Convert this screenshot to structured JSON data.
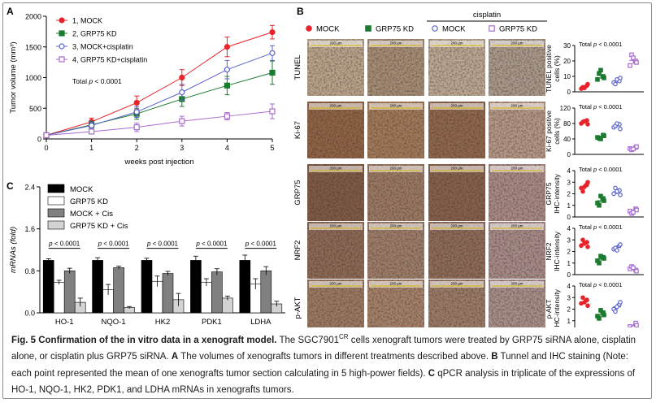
{
  "caption": {
    "lead": "Fig. 5 Confirmation of the in vitro data in a xenograft model.",
    "s1": " The SGC7901",
    "sup": "CR",
    "s2": " cells xenograft tumors were treated by GRP75 siRNA alone, cisplatin alone, or cisplatin plus GRP75 siRNA. ",
    "lA": "A",
    "s3": " The volumes of xenografts tumors in different treatments described above. ",
    "lB": "B",
    "s4": " Tunnel and IHC staining (Note: each point represented the mean of one xenografts tumor section calculating in 5 high-power fields). ",
    "lC": "C",
    "s5": " qPCR analysis in triplicate of the expressions of HO-1, NQO-1, HK2, PDK1, and LDHA mRNAs in xenografts tumors."
  },
  "colors": {
    "red": "#e8232a",
    "green": "#1a7a2e",
    "blue": "#5a63c9",
    "purple": "#a86ad0"
  },
  "panelA": {
    "letter": "A",
    "annotation": "Total p < 0.0001",
    "chart_data": {
      "type": "line",
      "x": [
        0,
        1,
        2,
        3,
        4,
        5
      ],
      "xlabel": "weeks post injection",
      "ylabel": "Tumor volume (mm³)",
      "xlim": [
        0,
        5
      ],
      "ylim": [
        0,
        2000
      ],
      "yticks": [
        0,
        500,
        1000,
        1500,
        2000
      ],
      "xticks": [
        0,
        1,
        2,
        3,
        4,
        5
      ],
      "legend": "top-left",
      "series": [
        {
          "name": "1, MOCK",
          "marker": "circle-filled",
          "color": "#e8232a",
          "values": [
            60,
            280,
            590,
            1000,
            1500,
            1740
          ],
          "err": [
            15,
            60,
            110,
            130,
            160,
            110
          ]
        },
        {
          "name": "2, GRP75 KD",
          "marker": "square-filled",
          "color": "#1a7a2e",
          "values": [
            60,
            230,
            410,
            650,
            870,
            1080
          ],
          "err": [
            15,
            60,
            90,
            120,
            150,
            190
          ]
        },
        {
          "name": "3, MOCK+cisplatin",
          "marker": "circle-open",
          "color": "#5a63c9",
          "values": [
            60,
            220,
            440,
            760,
            1130,
            1400
          ],
          "err": [
            15,
            55,
            90,
            130,
            150,
            120
          ]
        },
        {
          "name": "4, GRP75 KD+cisplatin",
          "marker": "square-open",
          "color": "#a86ad0",
          "values": [
            60,
            120,
            190,
            290,
            370,
            450
          ],
          "err": [
            10,
            40,
            70,
            80,
            60,
            120
          ]
        }
      ]
    }
  },
  "panelB": {
    "letter": "B",
    "cisplatin_label": "cisplatin",
    "legend": [
      {
        "label": "MOCK",
        "marker": "circle-filled",
        "color": "#e8232a"
      },
      {
        "label": "GRP75 KD",
        "marker": "square-filled",
        "color": "#1a7a2e"
      },
      {
        "label": "MOCK",
        "marker": "circle-open",
        "color": "#5a63c9"
      },
      {
        "label": "GRP75 KD",
        "marker": "square-open",
        "color": "#a86ad0"
      }
    ],
    "scale_bar": "200 µm",
    "rows": [
      {
        "stain": "TUNEL",
        "tint": [
          "#b9a58e",
          "#a58e78",
          "#bba995",
          "#a99a8e"
        ],
        "plot": {
          "ylabel": "TUNEL positive cells (%)",
          "annotation": "Total p < 0.0001",
          "ylim": [
            0,
            30
          ],
          "yticks": [
            0,
            10,
            20,
            30
          ],
          "groups": [
            [
              2,
              4,
              3,
              5,
              2.5
            ],
            [
              8,
              10,
              12,
              9,
              14
            ],
            [
              6,
              7,
              5,
              9,
              8
            ],
            [
              17,
              20,
              24,
              19,
              22
            ]
          ]
        }
      },
      {
        "stain": "Ki-67",
        "tint": [
          "#8f6448",
          "#a07a5c",
          "#8e6850",
          "#b49888"
        ],
        "plot": {
          "ylabel": "Ki-67 positive cells (%)",
          "annotation": "Total p < 0.0001",
          "ylim": [
            0,
            120
          ],
          "yticks": [
            0,
            40,
            80,
            120
          ],
          "groups": [
            [
              80,
              88,
              84,
              78,
              86
            ],
            [
              44,
              50,
              42,
              48,
              40
            ],
            [
              70,
              78,
              74,
              66,
              80
            ],
            [
              15,
              18,
              12,
              20,
              14
            ]
          ]
        }
      },
      {
        "stain": "GRP75",
        "tint": [
          "#7f5c48",
          "#9a7a66",
          "#86614f",
          "#a88b88"
        ],
        "plot": {
          "ylabel": "GRP75 IHC-intensity",
          "annotation": "Total p < 0.0001",
          "ylim": [
            0,
            4
          ],
          "yticks": [
            0,
            1,
            2,
            3,
            4
          ],
          "groups": [
            [
              2.5,
              2.8,
              2.2,
              3.0,
              2.6
            ],
            [
              1.2,
              1.6,
              1.0,
              1.4,
              1.8
            ],
            [
              2.0,
              2.3,
              2.5,
              1.9,
              2.2
            ],
            [
              0.5,
              0.7,
              0.3,
              0.6,
              0.4
            ]
          ]
        }
      },
      {
        "stain": "NRF2",
        "tint": [
          "#8c6a58",
          "#9c7e6c",
          "#8d6c5c",
          "#a68c8a"
        ],
        "plot": {
          "ylabel": "NRF2 IHC-intensity",
          "annotation": "Total p < 0.0001",
          "ylim": [
            0,
            4
          ],
          "yticks": [
            0,
            1,
            2,
            3,
            4
          ],
          "groups": [
            [
              2.5,
              2.8,
              3.0,
              2.4,
              2.7
            ],
            [
              1.2,
              1.5,
              1.0,
              1.4,
              1.6
            ],
            [
              2.2,
              2.5,
              2.3,
              2.6,
              2.1
            ],
            [
              0.5,
              0.4,
              0.7,
              0.3,
              0.6
            ]
          ]
        }
      },
      {
        "stain": "p-AKT",
        "tint": [
          "#9b7a64",
          "#a4826c",
          "#9a7c6a",
          "#a78f8c"
        ],
        "plot": {
          "ylabel": "p-AKT IHC-intensity",
          "annotation": "Total p < 0.0001",
          "ylim": [
            0,
            4
          ],
          "yticks": [
            0,
            1,
            2,
            3,
            4
          ],
          "groups": [
            [
              2.5,
              2.8,
              3.0,
              2.3,
              2.6
            ],
            [
              1.4,
              1.7,
              1.2,
              1.5,
              1.9
            ],
            [
              2.0,
              2.4,
              1.8,
              2.6,
              2.2
            ],
            [
              0.5,
              0.8,
              0.3,
              0.6,
              0.4
            ]
          ]
        }
      }
    ]
  },
  "panelC": {
    "letter": "C",
    "chart_data": {
      "type": "bar",
      "categories": [
        "HO-1",
        "NQO-1",
        "HK2",
        "PDK1",
        "LDHA"
      ],
      "ylabel": "mRNAs (fold)",
      "ylim": [
        0,
        2.4
      ],
      "yticks": [
        0.0,
        0.8,
        1.6,
        2.4
      ],
      "legend": "top-center",
      "significance": "p < 0.0001",
      "series": [
        {
          "name": "MOCK",
          "color": "#000000",
          "values": [
            1.0,
            1.0,
            1.0,
            1.0,
            1.0
          ],
          "err": [
            0.03,
            0.05,
            0.04,
            0.08,
            0.1
          ]
        },
        {
          "name": "GRP75 KD",
          "color": "#ffffff",
          "values": [
            0.58,
            0.44,
            0.6,
            0.58,
            0.55
          ],
          "err": [
            0.04,
            0.1,
            0.1,
            0.07,
            0.1
          ]
        },
        {
          "name": "MOCK + Cis",
          "color": "#808080",
          "values": [
            0.8,
            0.86,
            0.75,
            0.78,
            0.8
          ],
          "err": [
            0.05,
            0.03,
            0.04,
            0.06,
            0.08
          ]
        },
        {
          "name": "GRP75 KD + Cis",
          "color": "#d3d3d3",
          "values": [
            0.2,
            0.1,
            0.25,
            0.28,
            0.17
          ],
          "err": [
            0.08,
            0.02,
            0.12,
            0.04,
            0.05
          ]
        }
      ]
    }
  }
}
